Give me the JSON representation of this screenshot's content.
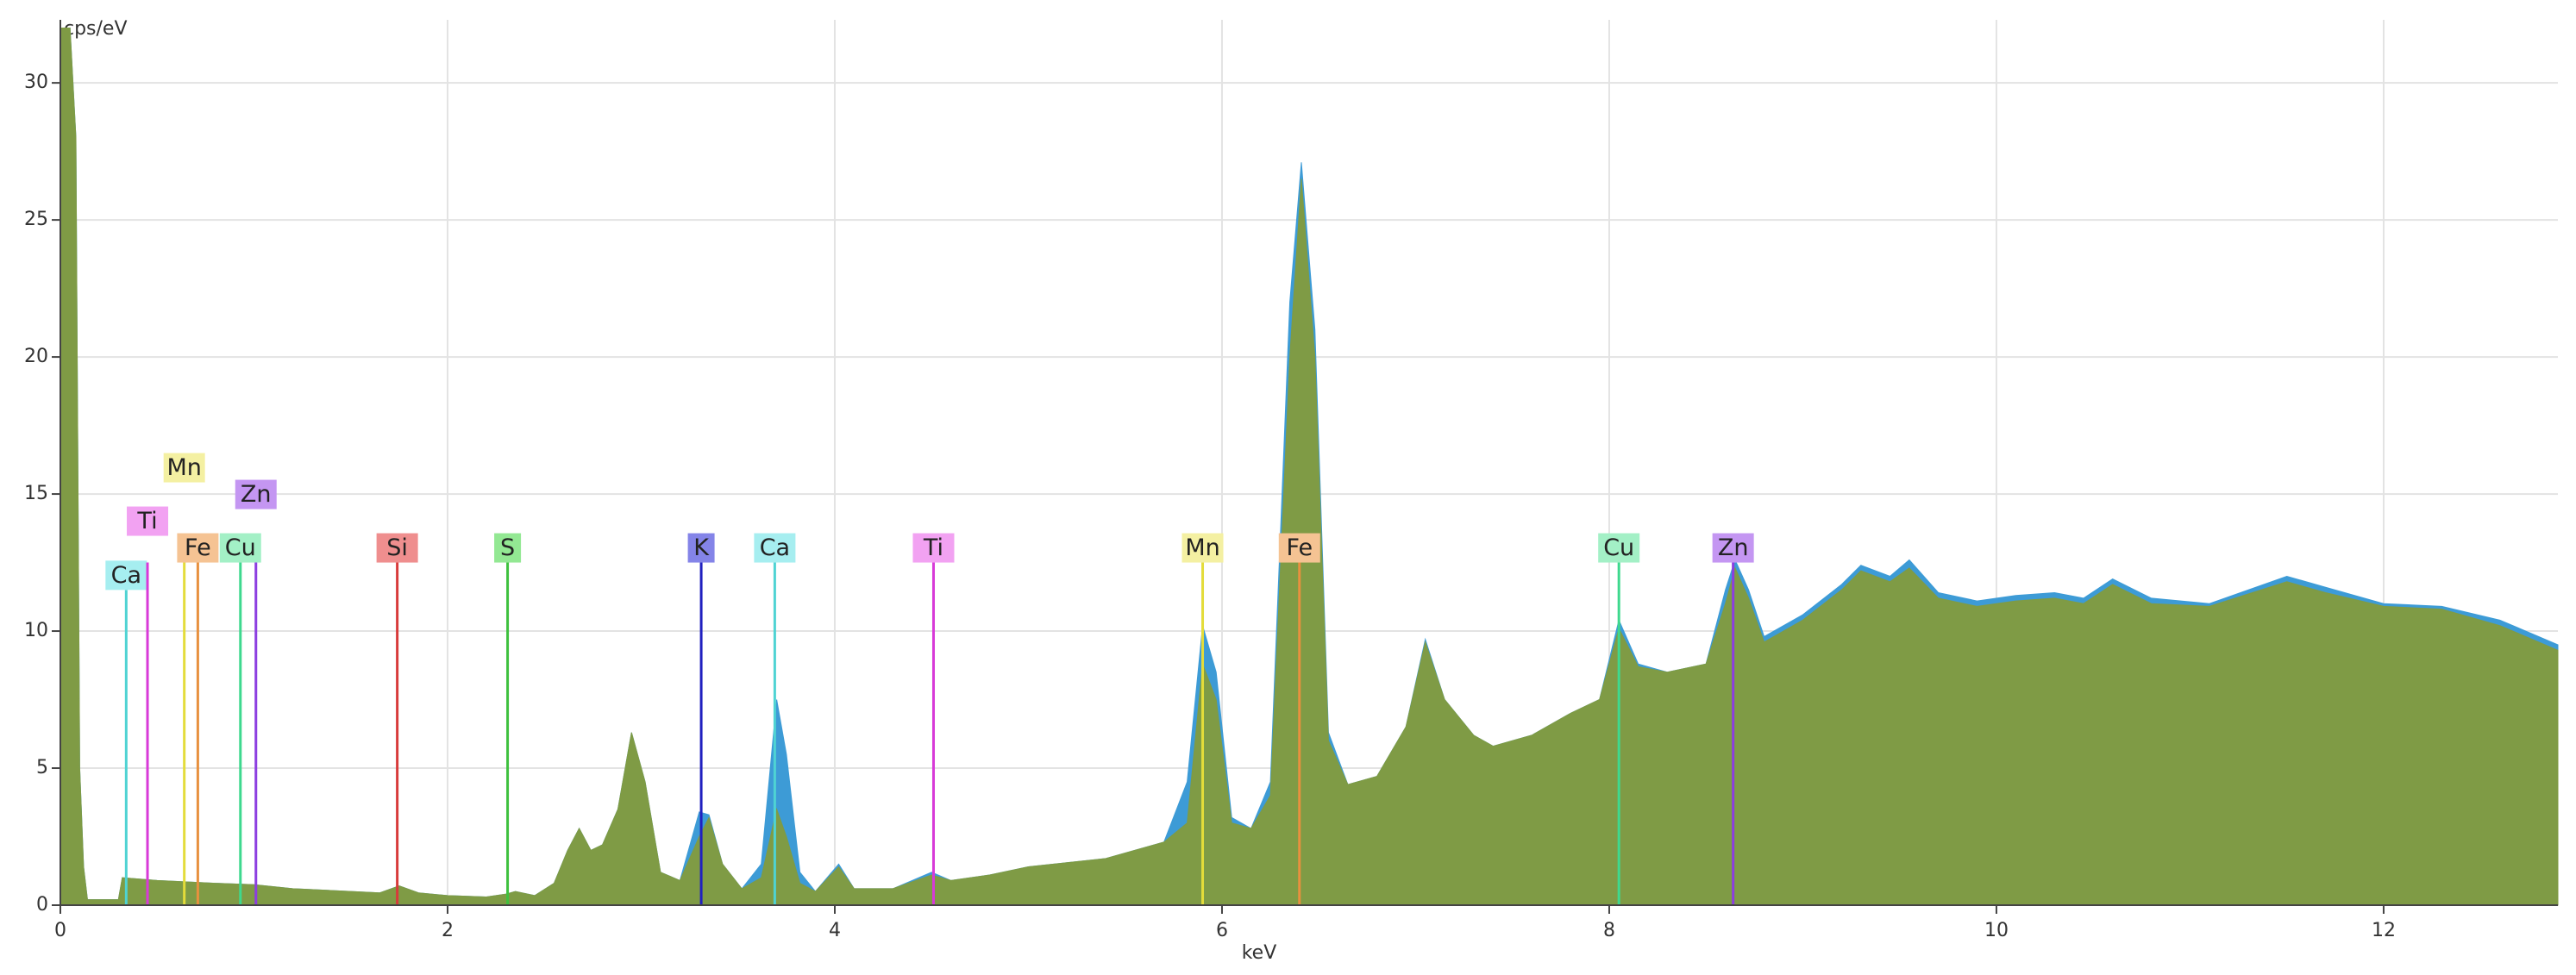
{
  "chart_data": {
    "type": "area",
    "xlabel": "keV",
    "ylabel": "cps/eV",
    "xlim": [
      0,
      12.9
    ],
    "ylim": [
      0,
      32.3
    ],
    "xticks": [
      0,
      2,
      4,
      6,
      8,
      10,
      12
    ],
    "yticks": [
      0,
      5,
      10,
      15,
      20,
      25,
      30
    ],
    "grid": true,
    "x": [
      0,
      0.05,
      0.08,
      0.1,
      0.12,
      0.14,
      0.3,
      0.32,
      0.5,
      0.8,
      1.0,
      1.2,
      1.5,
      1.65,
      1.75,
      1.85,
      2.0,
      2.2,
      2.3,
      2.35,
      2.45,
      2.55,
      2.62,
      2.68,
      2.74,
      2.8,
      2.88,
      2.95,
      3.02,
      3.1,
      3.2,
      3.3,
      3.35,
      3.42,
      3.52,
      3.62,
      3.7,
      3.75,
      3.82,
      3.9,
      4.02,
      4.1,
      4.3,
      4.5,
      4.6,
      4.8,
      5.0,
      5.4,
      5.7,
      5.82,
      5.9,
      5.97,
      6.05,
      6.15,
      6.25,
      6.35,
      6.41,
      6.48,
      6.55,
      6.65,
      6.8,
      6.95,
      7.05,
      7.15,
      7.3,
      7.4,
      7.6,
      7.8,
      7.95,
      8.05,
      8.15,
      8.3,
      8.5,
      8.6,
      8.65,
      8.72,
      8.8,
      9.0,
      9.2,
      9.3,
      9.45,
      9.55,
      9.7,
      9.9,
      10.1,
      10.3,
      10.45,
      10.6,
      10.8,
      11.1,
      11.5,
      11.7,
      12.0,
      12.3,
      12.6,
      12.9
    ],
    "series": [
      {
        "color": "#3d9bd6",
        "values": [
          32,
          32,
          28,
          5,
          1.4,
          0.2,
          0.2,
          1.0,
          0.9,
          0.8,
          0.75,
          0.6,
          0.5,
          0.45,
          0.7,
          0.45,
          0.35,
          0.3,
          0.4,
          0.5,
          0.35,
          0.8,
          2.0,
          2.8,
          2.0,
          2.2,
          3.5,
          6.3,
          4.5,
          1.2,
          0.9,
          3.4,
          3.3,
          1.5,
          0.6,
          1.5,
          7.5,
          5.5,
          1.2,
          0.5,
          1.5,
          0.6,
          0.6,
          1.2,
          0.9,
          1.1,
          1.4,
          1.7,
          2.3,
          4.5,
          10.2,
          8.5,
          3.2,
          2.8,
          4.5,
          22,
          27.1,
          21,
          6.3,
          4.4,
          4.7,
          6.5,
          9.7,
          7.5,
          6.2,
          5.8,
          6.2,
          7.0,
          7.5,
          10.4,
          8.8,
          8.5,
          8.8,
          11.5,
          12.6,
          11.5,
          9.8,
          10.6,
          11.7,
          12.4,
          12.0,
          12.6,
          11.4,
          11.1,
          11.3,
          11.4,
          11.2,
          11.9,
          11.2,
          11.0,
          12.0,
          11.6,
          11.0,
          10.9,
          10.4,
          9.5
        ]
      },
      {
        "color": "#7f9b45",
        "values": [
          32,
          32,
          28,
          5,
          1.4,
          0.2,
          0.2,
          1.0,
          0.9,
          0.8,
          0.75,
          0.6,
          0.5,
          0.45,
          0.7,
          0.45,
          0.35,
          0.3,
          0.4,
          0.5,
          0.35,
          0.8,
          2.0,
          2.8,
          2.0,
          2.2,
          3.5,
          6.3,
          4.5,
          1.2,
          0.9,
          2.5,
          3.2,
          1.5,
          0.6,
          1.0,
          3.5,
          2.5,
          0.8,
          0.5,
          1.4,
          0.6,
          0.6,
          1.1,
          0.9,
          1.1,
          1.4,
          1.7,
          2.3,
          3.0,
          8.8,
          7.5,
          3.0,
          2.8,
          4.0,
          20,
          26.5,
          20,
          6,
          4.4,
          4.7,
          6.5,
          9.6,
          7.5,
          6.2,
          5.8,
          6.2,
          7.0,
          7.5,
          10.1,
          8.7,
          8.5,
          8.8,
          11,
          12.3,
          11.2,
          9.6,
          10.4,
          11.5,
          12.2,
          11.8,
          12.3,
          11.2,
          10.9,
          11.1,
          11.2,
          11.0,
          11.7,
          11.0,
          10.9,
          11.8,
          11.4,
          10.9,
          10.8,
          10.2,
          9.3
        ]
      }
    ],
    "markers": [
      {
        "label": "Ca",
        "energy": 0.34,
        "height": 11.5,
        "color": "#4fd3d3",
        "label_color": "#a6eef0"
      },
      {
        "label": "Ti",
        "energy": 0.45,
        "height": 12.5,
        "color": "#d83ad8",
        "label_color": "#f2a2f2"
      },
      {
        "label": "Mn",
        "energy": 0.64,
        "height": 12.5,
        "color": "#e4dc3a",
        "label_color": "#f4f0a2"
      },
      {
        "label": "Fe",
        "energy": 0.71,
        "height": 12.5,
        "color": "#e8903e",
        "label_color": "#f5c393"
      },
      {
        "label": "Cu",
        "energy": 0.93,
        "height": 12.5,
        "color": "#3ed88e",
        "label_color": "#a3f0c6"
      },
      {
        "label": "Zn",
        "energy": 1.01,
        "height": 12.5,
        "color": "#8c3ee0",
        "label_color": "#c496f2"
      },
      {
        "label": "Si",
        "energy": 1.74,
        "height": 12.5,
        "color": "#d83a3a",
        "label_color": "#ef8e8e"
      },
      {
        "label": "S",
        "energy": 2.31,
        "height": 12.5,
        "color": "#3ec03e",
        "label_color": "#93e893"
      },
      {
        "label": "K",
        "energy": 3.31,
        "height": 12.5,
        "color": "#2020c0",
        "label_color": "#8484e8"
      },
      {
        "label": "Ca",
        "energy": 3.69,
        "height": 12.5,
        "color": "#4fd3d3",
        "label_color": "#a6eef0"
      },
      {
        "label": "Ti",
        "energy": 4.51,
        "height": 12.5,
        "color": "#d83ad8",
        "label_color": "#f2a2f2"
      },
      {
        "label": "Mn",
        "energy": 5.9,
        "height": 12.5,
        "color": "#e4dc3a",
        "label_color": "#f4f0a2"
      },
      {
        "label": "Fe",
        "energy": 6.4,
        "height": 12.5,
        "color": "#e8903e",
        "label_color": "#f5c393"
      },
      {
        "label": "Cu",
        "energy": 8.05,
        "height": 12.5,
        "color": "#3ed88e",
        "label_color": "#a3f0c6"
      },
      {
        "label": "Zn",
        "energy": 8.64,
        "height": 12.5,
        "color": "#8c3ee0",
        "label_color": "#c496f2"
      }
    ]
  }
}
